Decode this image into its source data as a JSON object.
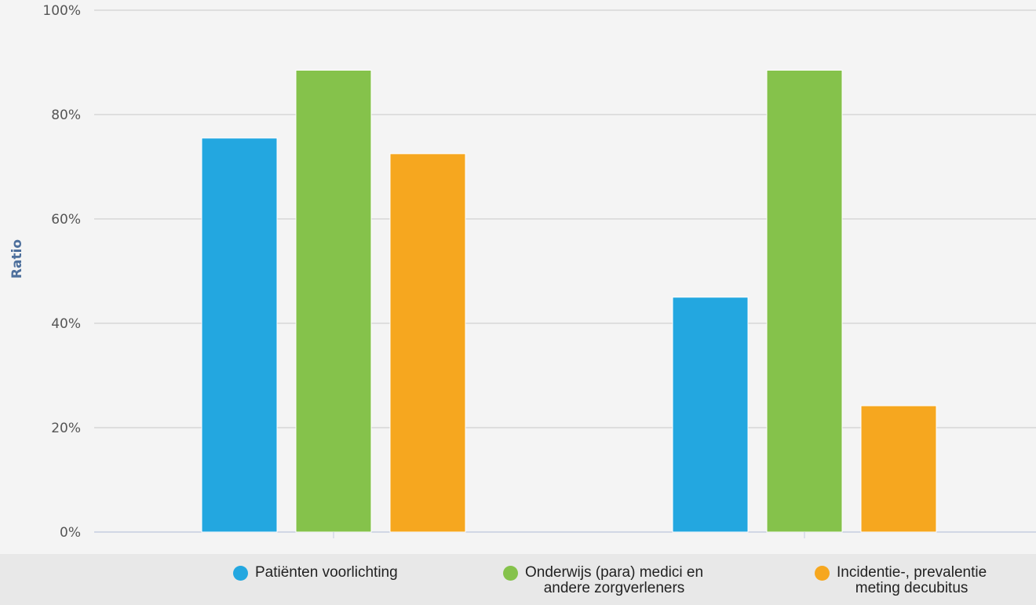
{
  "chart_data": {
    "type": "bar",
    "ylabel": "Ratio",
    "xlabel": "",
    "ylim": [
      0,
      100
    ],
    "yticks": [
      "0%",
      "20%",
      "40%",
      "60%",
      "80%",
      "100%"
    ],
    "categories": [
      "",
      ""
    ],
    "series": [
      {
        "name": "Patiënten voorlichting",
        "color": "#23a7e0",
        "values": [
          75.5,
          45
        ]
      },
      {
        "name": "Onderwijs (para) medici en andere zorgverleners",
        "color": "#85c24b",
        "values": [
          88.5,
          88.5
        ]
      },
      {
        "name": "Incidentie-, prevalentie meting decubitus",
        "color": "#f6a71f",
        "values": [
          72.5,
          24.2
        ]
      }
    ],
    "grid": true,
    "legend_position": "bottom"
  },
  "legend": {
    "items": [
      {
        "label": "Patiënten voorlichting",
        "color": "#23a7e0"
      },
      {
        "label": "Onderwijs (para) medici en\nandere zorgverleners",
        "color": "#85c24b"
      },
      {
        "label": "Incidentie-, prevalentie\nmeting decubitus",
        "color": "#f6a71f"
      }
    ]
  }
}
